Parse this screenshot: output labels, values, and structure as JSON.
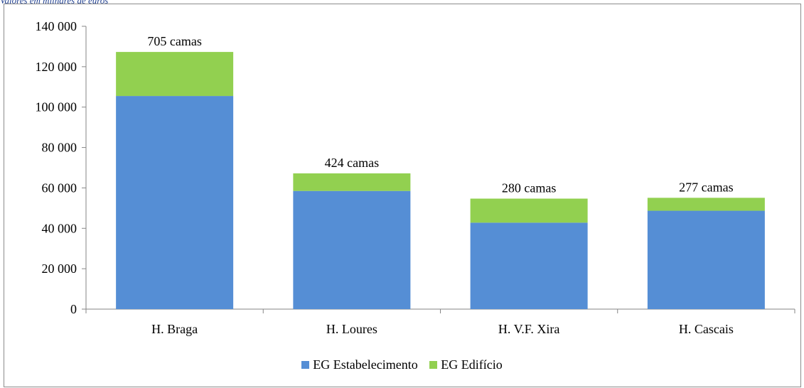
{
  "note": "Valores em milhares de euros",
  "chart_data": {
    "type": "bar",
    "stacked": true,
    "categories": [
      "H. Braga",
      "H. Loures",
      "H. V.F. Xira",
      "H. Cascais"
    ],
    "series": [
      {
        "name": "EG Estabelecimento",
        "color": "#558ed5",
        "values": [
          105500,
          58500,
          42800,
          48700
        ]
      },
      {
        "name": "EG Edifício",
        "color": "#92d050",
        "values": [
          21800,
          8700,
          11900,
          6400
        ]
      }
    ],
    "bar_labels": [
      "705 camas",
      "424 camas",
      "280 camas",
      "277 camas"
    ],
    "ylim": [
      0,
      140000
    ],
    "yticks": [
      0,
      20000,
      40000,
      60000,
      80000,
      100000,
      120000,
      140000
    ],
    "ytick_labels": [
      "0",
      "20 000",
      "40 000",
      "60 000",
      "80 000",
      "100 000",
      "120 000",
      "140 000"
    ],
    "xlabel": "",
    "ylabel": "",
    "grid": false,
    "legend_position": "bottom"
  }
}
